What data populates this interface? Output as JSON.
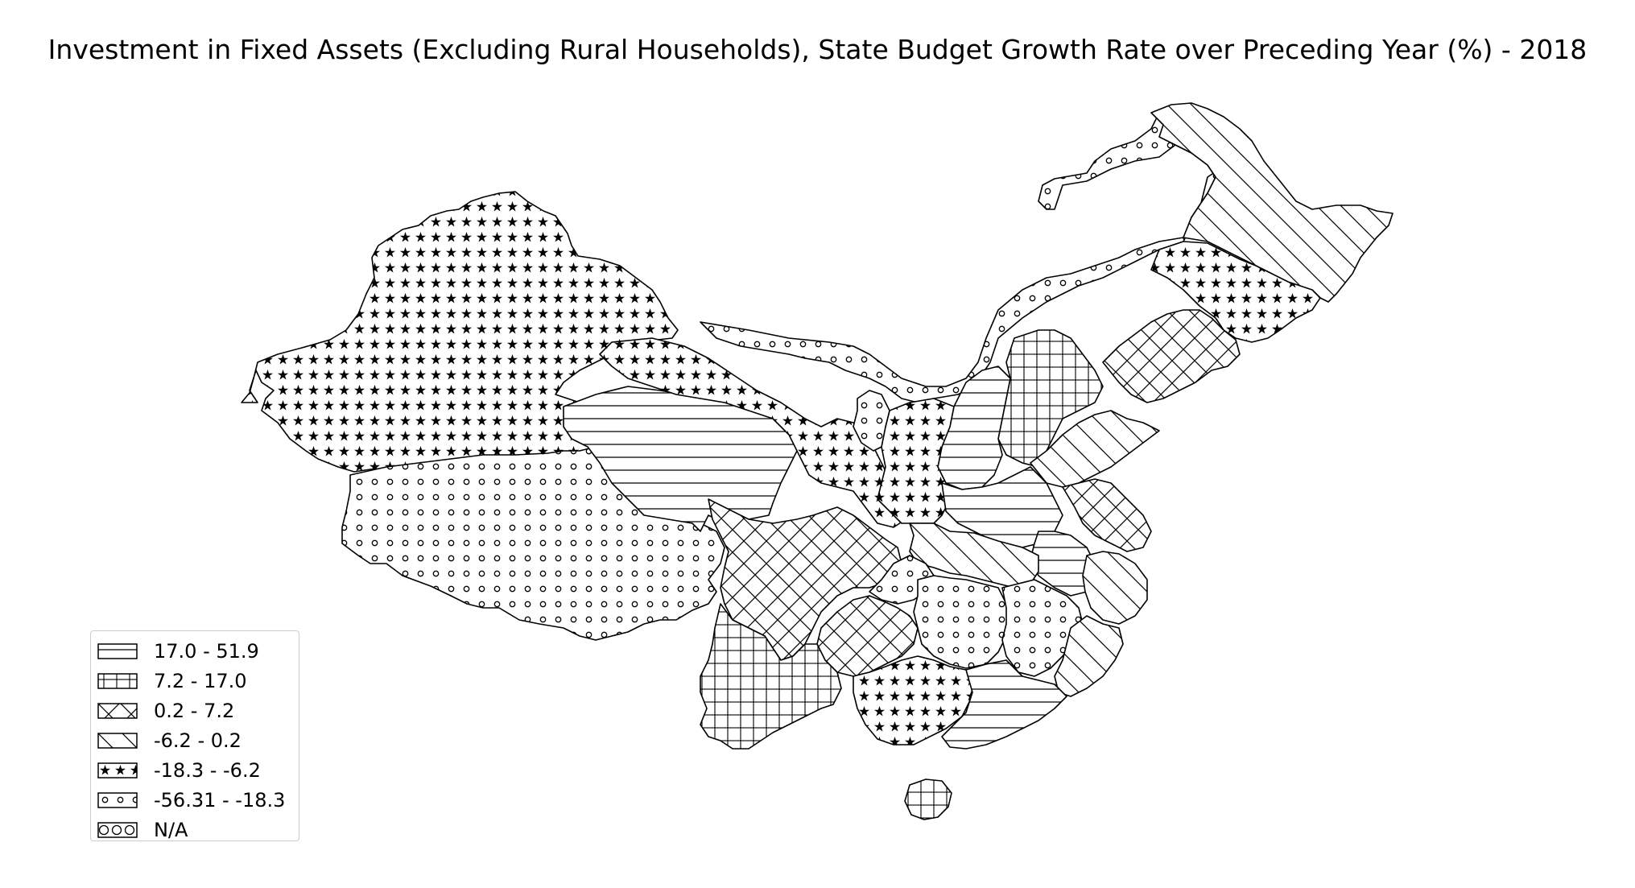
{
  "title": "Investment in Fixed Assets (Excluding Rural Households), State Budget Growth Rate over Preceding Year (%) - 2018",
  "legend": [
    {
      "label": "17.0 - 51.9",
      "pattern": "hlines"
    },
    {
      "label": "7.2 - 17.0",
      "pattern": "grid"
    },
    {
      "label": "0.2 - 7.2",
      "pattern": "crosshatch"
    },
    {
      "label": "-6.2 - 0.2",
      "pattern": "diag"
    },
    {
      "label": "-18.3 - -6.2",
      "pattern": "stars"
    },
    {
      "label": "-56.31 - -18.3",
      "pattern": "circles"
    },
    {
      "label": "N/A",
      "pattern": "bigcircles"
    }
  ],
  "colors": {
    "stroke": "#000000",
    "background": "#ffffff",
    "legend_border": "#cccccc"
  }
}
